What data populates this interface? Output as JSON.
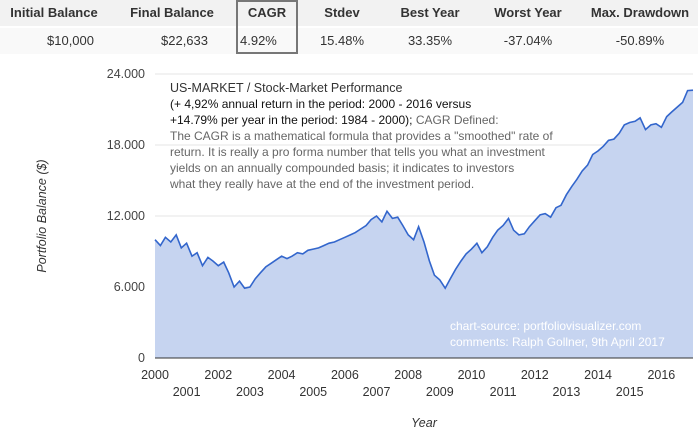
{
  "stats": {
    "headers": [
      "Initial Balance",
      "Final Balance",
      "CAGR",
      "Stdev",
      "Best Year",
      "Worst Year",
      "Max. Drawdown"
    ],
    "values": [
      "$10,000",
      "$22,633",
      "4.92%",
      "15.48%",
      "33.35%",
      "-37.04%",
      "-50.89%"
    ]
  },
  "annotation": {
    "title": "US-MARKET / Stock-Market Performance",
    "line1": "(+ 4,92% annual return in the period: 2000 - 2016 versus",
    "line2a": "+14.79% per year in the period: 1984 - 2000);",
    "line2b": " CAGR Defined:",
    "lines_gray": [
      "The CAGR is a mathematical formula that provides a \"smoothed\" rate of",
      "return. It is really a pro forma number that tells you what an investment",
      "yields on an annually compounded basis; it indicates to investors",
      "what they really have at the end of the investment period."
    ]
  },
  "source": {
    "line1": "chart-source: portfoliovisualizer.com",
    "line2": "comments: Ralph Gollner, 9th April 2017"
  },
  "colors": {
    "line": "#3366cc",
    "area": "#c6d4f0",
    "grid": "#e6e6e6",
    "axis": "#333333"
  },
  "chart_data": {
    "type": "area",
    "xlabel": "Year",
    "ylabel": "Portfolio Balance ($)",
    "ylim": [
      0,
      24000
    ],
    "yticks": [
      0,
      6000,
      12000,
      18000,
      24000
    ],
    "ytick_labels": [
      "0",
      "6.000",
      "12.000",
      "18.000",
      "24.000"
    ],
    "xlim": [
      2000,
      2017
    ],
    "xticks_top": [
      2000,
      2002,
      2004,
      2006,
      2008,
      2010,
      2012,
      2014,
      2016
    ],
    "xticks_bottom": [
      2001,
      2003,
      2005,
      2007,
      2009,
      2011,
      2013,
      2015
    ],
    "grid": true,
    "series": [
      {
        "x": [
          2000.0,
          2000.17,
          2000.33,
          2000.5,
          2000.67,
          2000.83,
          2001.0,
          2001.17,
          2001.33,
          2001.5,
          2001.67,
          2001.83,
          2002.0,
          2002.17,
          2002.33,
          2002.5,
          2002.67,
          2002.83,
          2003.0,
          2003.17,
          2003.33,
          2003.5,
          2003.67,
          2003.83,
          2004.0,
          2004.17,
          2004.33,
          2004.5,
          2004.67,
          2004.83,
          2005.0,
          2005.17,
          2005.33,
          2005.5,
          2005.67,
          2005.83,
          2006.0,
          2006.17,
          2006.33,
          2006.5,
          2006.67,
          2006.83,
          2007.0,
          2007.17,
          2007.33,
          2007.5,
          2007.67,
          2007.83,
          2008.0,
          2008.17,
          2008.33,
          2008.5,
          2008.67,
          2008.83,
          2009.0,
          2009.17,
          2009.33,
          2009.5,
          2009.67,
          2009.83,
          2010.0,
          2010.17,
          2010.33,
          2010.5,
          2010.67,
          2010.83,
          2011.0,
          2011.17,
          2011.33,
          2011.5,
          2011.67,
          2011.83,
          2012.0,
          2012.17,
          2012.33,
          2012.5,
          2012.67,
          2012.83,
          2013.0,
          2013.17,
          2013.33,
          2013.5,
          2013.67,
          2013.83,
          2014.0,
          2014.17,
          2014.33,
          2014.5,
          2014.67,
          2014.83,
          2015.0,
          2015.17,
          2015.33,
          2015.5,
          2015.67,
          2015.83,
          2016.0,
          2016.17,
          2016.33,
          2016.5,
          2016.67,
          2016.83,
          2017.0
        ],
        "values": [
          10000,
          9500,
          10200,
          9800,
          10400,
          9300,
          9700,
          8600,
          8900,
          7800,
          8500,
          8200,
          7800,
          8100,
          7200,
          6000,
          6500,
          5900,
          6000,
          6700,
          7200,
          7700,
          8000,
          8300,
          8600,
          8400,
          8600,
          8900,
          8800,
          9100,
          9200,
          9300,
          9500,
          9700,
          9800,
          10000,
          10200,
          10400,
          10600,
          10900,
          11200,
          11700,
          12000,
          11500,
          12400,
          11800,
          11900,
          11200,
          10400,
          10000,
          11100,
          9800,
          8200,
          7000,
          6600,
          5900,
          6700,
          7500,
          8200,
          8800,
          9200,
          9700,
          8900,
          9400,
          10200,
          10800,
          11200,
          11800,
          10800,
          10400,
          10500,
          11100,
          11600,
          12100,
          12200,
          11900,
          12700,
          12900,
          13800,
          14500,
          15100,
          15800,
          16300,
          17200,
          17500,
          17900,
          18400,
          18500,
          19000,
          19700,
          19900,
          20000,
          20300,
          19300,
          19700,
          19800,
          19500,
          20400,
          20800,
          21200,
          21600,
          22600,
          22633
        ]
      }
    ]
  }
}
